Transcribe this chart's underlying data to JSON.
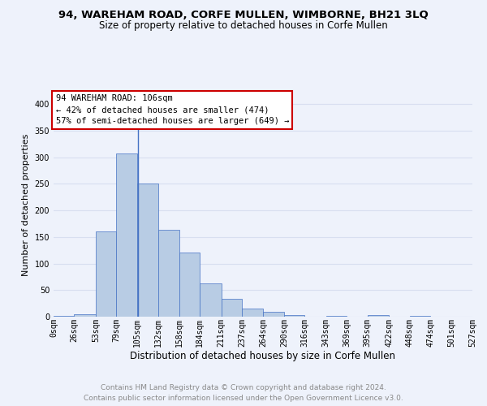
{
  "title": "94, WAREHAM ROAD, CORFE MULLEN, WIMBORNE, BH21 3LQ",
  "subtitle": "Size of property relative to detached houses in Corfe Mullen",
  "xlabel": "Distribution of detached houses by size in Corfe Mullen",
  "ylabel": "Number of detached properties",
  "footer_line1": "Contains HM Land Registry data © Crown copyright and database right 2024.",
  "footer_line2": "Contains public sector information licensed under the Open Government Licence v3.0.",
  "bar_edges": [
    0,
    26,
    53,
    79,
    105,
    132,
    158,
    184,
    211,
    237,
    264,
    290,
    316,
    343,
    369,
    395,
    422,
    448,
    474,
    501,
    527
  ],
  "bar_heights": [
    2,
    5,
    160,
    307,
    250,
    163,
    121,
    63,
    33,
    16,
    9,
    3,
    0,
    2,
    0,
    3,
    0,
    2,
    0,
    0
  ],
  "bar_color": "#b8cce4",
  "bar_edge_color": "#4472c4",
  "subject_x": 106,
  "annotation_box_text": "94 WAREHAM ROAD: 106sqm\n← 42% of detached houses are smaller (474)\n57% of semi-detached houses are larger (649) →",
  "annotation_box_color": "#ffffff",
  "annotation_box_edge_color": "#cc0000",
  "ylim": [
    0,
    420
  ],
  "xlim": [
    0,
    527
  ],
  "tick_labels": [
    "0sqm",
    "26sqm",
    "53sqm",
    "79sqm",
    "105sqm",
    "132sqm",
    "158sqm",
    "184sqm",
    "211sqm",
    "237sqm",
    "264sqm",
    "290sqm",
    "316sqm",
    "343sqm",
    "369sqm",
    "395sqm",
    "422sqm",
    "448sqm",
    "474sqm",
    "501sqm",
    "527sqm"
  ],
  "grid_color": "#d8dff0",
  "background_color": "#eef2fb",
  "title_fontsize": 9.5,
  "subtitle_fontsize": 8.5,
  "xlabel_fontsize": 8.5,
  "ylabel_fontsize": 8,
  "footer_fontsize": 6.5,
  "tick_fontsize": 7,
  "annotation_fontsize": 7.5
}
